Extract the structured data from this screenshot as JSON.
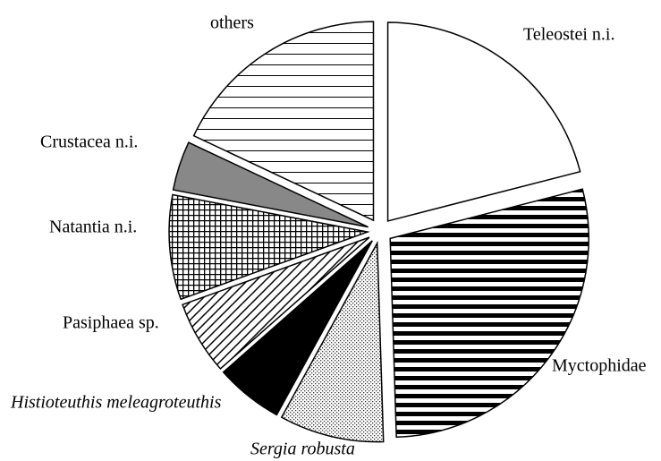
{
  "chart_data": {
    "type": "pie",
    "categories": [
      "Teleostei n.i.",
      "Myctophidae",
      "Sergia robusta",
      "Histioteuthis meleagroteuthis",
      "Pasiphaea sp.",
      "Natantia n.i.",
      "Crustacea n.i.",
      "others"
    ],
    "values": [
      21,
      28.5,
      8.5,
      5.5,
      6,
      8.5,
      4,
      18
    ]
  }
}
